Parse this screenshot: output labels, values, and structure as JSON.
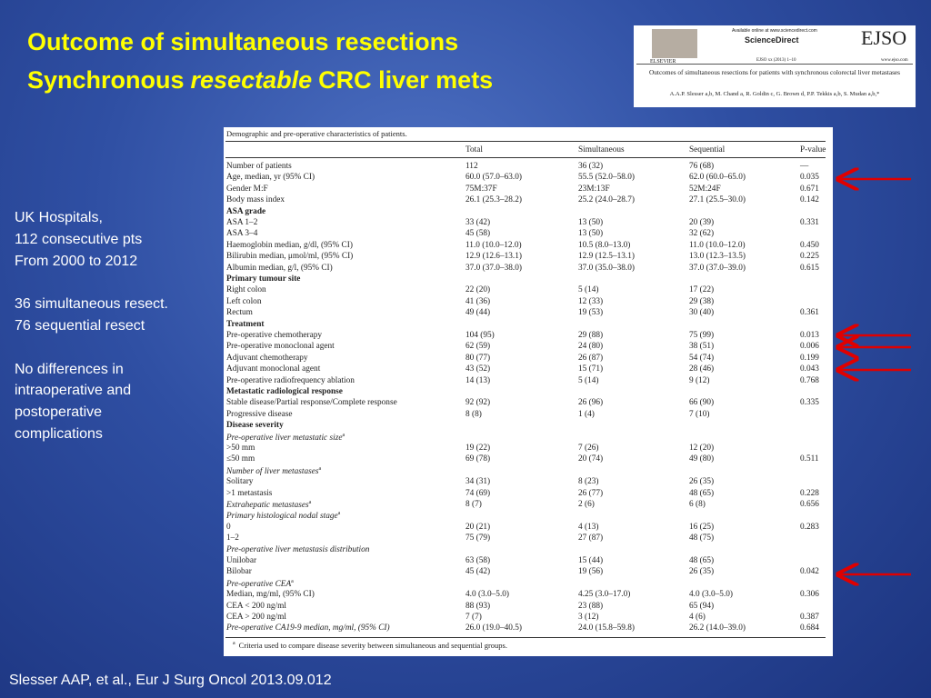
{
  "title": {
    "line1": "Outcome of simultaneous resections",
    "line2": [
      "Synchronous",
      "resectable",
      "CRC liver mets"
    ]
  },
  "journal": {
    "available": "Available online at www.sciencedirect.com",
    "brand": "ScienceDirect",
    "logo": "EJSO",
    "publisher": "ELSEVIER",
    "issue": "EJSO xx (2013) 1–10",
    "site": "www.ejso.com",
    "article_title": "Outcomes of simultaneous resections for patients with synchronous colorectal liver metastases",
    "authors": "A.A.P. Slesser a,b, M. Chand a, R. Goldin c, G. Brown d, P.P. Tekkis a,b, S. Mudan a,b,*"
  },
  "notes": [
    [
      "UK Hospitals,",
      "112 consecutive pts",
      "From 2000 to 2012"
    ],
    [
      "36 simultaneous resect.",
      "76 sequential resect"
    ],
    [
      "No differences in",
      "intraoperative and",
      "postoperative",
      "complications"
    ]
  ],
  "table": {
    "title": "Demographic and pre-operative characteristics of patients.",
    "header": [
      "Total",
      "Simultaneous",
      "Sequential",
      "P-value"
    ],
    "rows": [
      {
        "label": "Number of patients",
        "total": "112",
        "simultaneous": "36 (32)",
        "sequential": "76 (68)",
        "p": "—"
      },
      {
        "label": "Age, median, yr (95% CI)",
        "total": "60.0 (57.0–63.0)",
        "simultaneous": "55.5 (52.0–58.0)",
        "sequential": "62.0 (60.0–65.0)",
        "p": "0.035"
      },
      {
        "label": "Gender M:F",
        "total": "75M:37F",
        "simultaneous": "23M:13F",
        "sequential": "52M:24F",
        "p": "0.671"
      },
      {
        "label": "Body mass index",
        "total": "26.1 (25.3–28.2)",
        "simultaneous": "25.2 (24.0–28.7)",
        "sequential": "27.1 (25.5–30.0)",
        "p": "0.142"
      },
      {
        "label": "ASA grade",
        "bold": true
      },
      {
        "label": "ASA 1–2",
        "total": "33 (42)",
        "simultaneous": "13 (50)",
        "sequential": "20 (39)",
        "p": "0.331"
      },
      {
        "label": "ASA 3–4",
        "total": "45 (58)",
        "simultaneous": "13 (50)",
        "sequential": "32 (62)"
      },
      {
        "label": "Haemoglobin median, g/dl, (95% CI)",
        "total": "11.0 (10.0–12.0)",
        "simultaneous": "10.5 (8.0–13.0)",
        "sequential": "11.0 (10.0–12.0)",
        "p": "0.450"
      },
      {
        "label": "Bilirubin median, μmol/ml, (95% CI)",
        "total": "12.9 (12.6–13.1)",
        "simultaneous": "12.9 (12.5–13.1)",
        "sequential": "13.0 (12.3–13.5)",
        "p": "0.225"
      },
      {
        "label": "Albumin median, g/l, (95% CI)",
        "total": "37.0 (37.0–38.0)",
        "simultaneous": "37.0 (35.0–38.0)",
        "sequential": "37.0 (37.0–39.0)",
        "p": "0.615"
      },
      {
        "label": "Primary tumour site",
        "bold": true
      },
      {
        "label": "Right colon",
        "total": "22 (20)",
        "simultaneous": "5 (14)",
        "sequential": "17 (22)"
      },
      {
        "label": "Left colon",
        "total": "41 (36)",
        "simultaneous": "12 (33)",
        "sequential": "29 (38)"
      },
      {
        "label": "Rectum",
        "total": "49 (44)",
        "simultaneous": "19 (53)",
        "sequential": "30 (40)",
        "p": "0.361"
      },
      {
        "label": "Treatment",
        "bold": true
      },
      {
        "label": "Pre-operative chemotherapy",
        "total": "104 (95)",
        "simultaneous": "29 (88)",
        "sequential": "75 (99)",
        "p": "0.013"
      },
      {
        "label": "Pre-operative monoclonal agent",
        "total": "62 (59)",
        "simultaneous": "24 (80)",
        "sequential": "38 (51)",
        "p": "0.006"
      },
      {
        "label": "Adjuvant chemotherapy",
        "total": "80 (77)",
        "simultaneous": "26 (87)",
        "sequential": "54 (74)",
        "p": "0.199"
      },
      {
        "label": "Adjuvant monoclonal agent",
        "total": "43 (52)",
        "simultaneous": "15 (71)",
        "sequential": "28 (46)",
        "p": "0.043"
      },
      {
        "label": "Pre-operative radiofrequency ablation",
        "total": "14 (13)",
        "simultaneous": "5 (14)",
        "sequential": "9 (12)",
        "p": "0.768"
      },
      {
        "label": "Metastatic radiological response",
        "bold": true
      },
      {
        "label": "Stable disease/Partial response/Complete response",
        "total": "92 (92)",
        "simultaneous": "26 (96)",
        "sequential": "66 (90)",
        "p": "0.335"
      },
      {
        "label": "Progressive disease",
        "total": "8 (8)",
        "simultaneous": "1 (4)",
        "sequential": "7 (10)"
      },
      {
        "label": "Disease severity",
        "bold": true
      },
      {
        "label": "Pre-operative liver metastatic size",
        "sup": "a",
        "italic": true
      },
      {
        "label": ">50 mm",
        "total": "19 (22)",
        "simultaneous": "7 (26)",
        "sequential": "12 (20)"
      },
      {
        "label": "≤50 mm",
        "total": "69 (78)",
        "simultaneous": "20 (74)",
        "sequential": "49 (80)",
        "p": "0.511"
      },
      {
        "label": "Number of liver metastases",
        "sup": "a",
        "italic": true
      },
      {
        "label": "Solitary",
        "total": "34 (31)",
        "simultaneous": "8 (23)",
        "sequential": "26 (35)"
      },
      {
        "label": ">1 metastasis",
        "total": "74 (69)",
        "simultaneous": "26 (77)",
        "sequential": "48 (65)",
        "p": "0.228"
      },
      {
        "label": "Extrahepatic metastases",
        "sup": "a",
        "italic": true,
        "total": "8 (7)",
        "simultaneous": "2 (6)",
        "sequential": "6 (8)",
        "p": "0.656"
      },
      {
        "label": "Primary histological nodal stage",
        "sup": "a",
        "italic": true
      },
      {
        "label": "0",
        "total": "20 (21)",
        "simultaneous": "4 (13)",
        "sequential": "16 (25)",
        "p": "0.283"
      },
      {
        "label": "1–2",
        "total": "75 (79)",
        "simultaneous": "27 (87)",
        "sequential": "48 (75)"
      },
      {
        "label": "Pre-operative liver metastasis distribution",
        "italic": true
      },
      {
        "label": "Unilobar",
        "total": "63 (58)",
        "simultaneous": "15 (44)",
        "sequential": "48 (65)"
      },
      {
        "label": "Bilobar",
        "total": "45 (42)",
        "simultaneous": "19 (56)",
        "sequential": "26 (35)",
        "p": "0.042"
      },
      {
        "label": "Pre-operative CEA",
        "sup": "a",
        "italic": true
      },
      {
        "label": "Median, mg/ml, (95% CI)",
        "total": "4.0 (3.0–5.0)",
        "simultaneous": "4.25 (3.0–17.0)",
        "sequential": "4.0 (3.0–5.0)",
        "p": "0.306"
      },
      {
        "label": "CEA < 200 ng/ml",
        "total": "88 (93)",
        "simultaneous": "23 (88)",
        "sequential": "65 (94)"
      },
      {
        "label": "CEA > 200 ng/ml",
        "total": "7 (7)",
        "simultaneous": "3 (12)",
        "sequential": "4 (6)",
        "p": "0.387"
      },
      {
        "label": "Pre-operative CA19-9 median, mg/ml, (95% CI)",
        "italic": true,
        "total": "26.0 (19.0–40.5)",
        "simultaneous": "24.0 (15.8–59.8)",
        "sequential": "26.2 (14.0–39.0)",
        "p": "0.684"
      }
    ],
    "footnote_mark": "a",
    "footnote": "Criteria used to compare disease severity between simultaneous and sequential groups."
  },
  "citation": "Slesser AAP, et al., Eur J Surg Oncol 2013.09.012"
}
